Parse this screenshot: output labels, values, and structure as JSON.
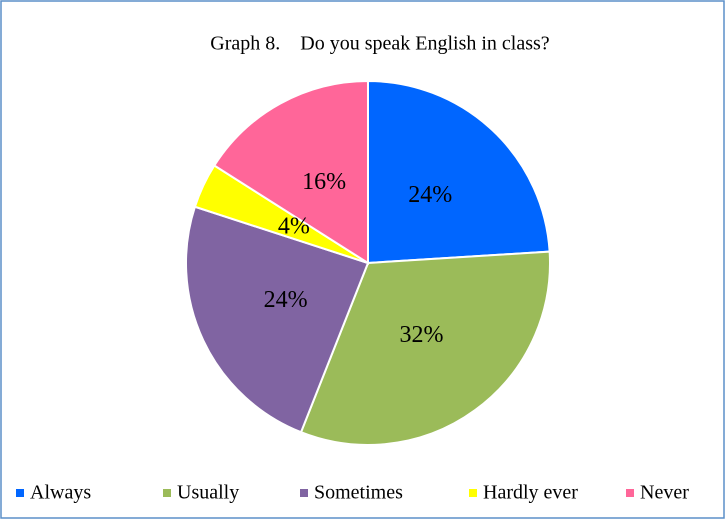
{
  "chart_data": {
    "type": "pie",
    "title": "Graph 8.    Do you speak English in class?",
    "categories": [
      "Always",
      "Usually",
      "Sometimes",
      "Hardly ever",
      "Never"
    ],
    "values": [
      24,
      32,
      24,
      4,
      16
    ],
    "value_labels": [
      "24%",
      "32%",
      "24%",
      "4%",
      "16%"
    ],
    "colors": [
      "#0066ff",
      "#9bbb59",
      "#8064a2",
      "#ffff00",
      "#ff6699"
    ],
    "legend": "bottom"
  }
}
